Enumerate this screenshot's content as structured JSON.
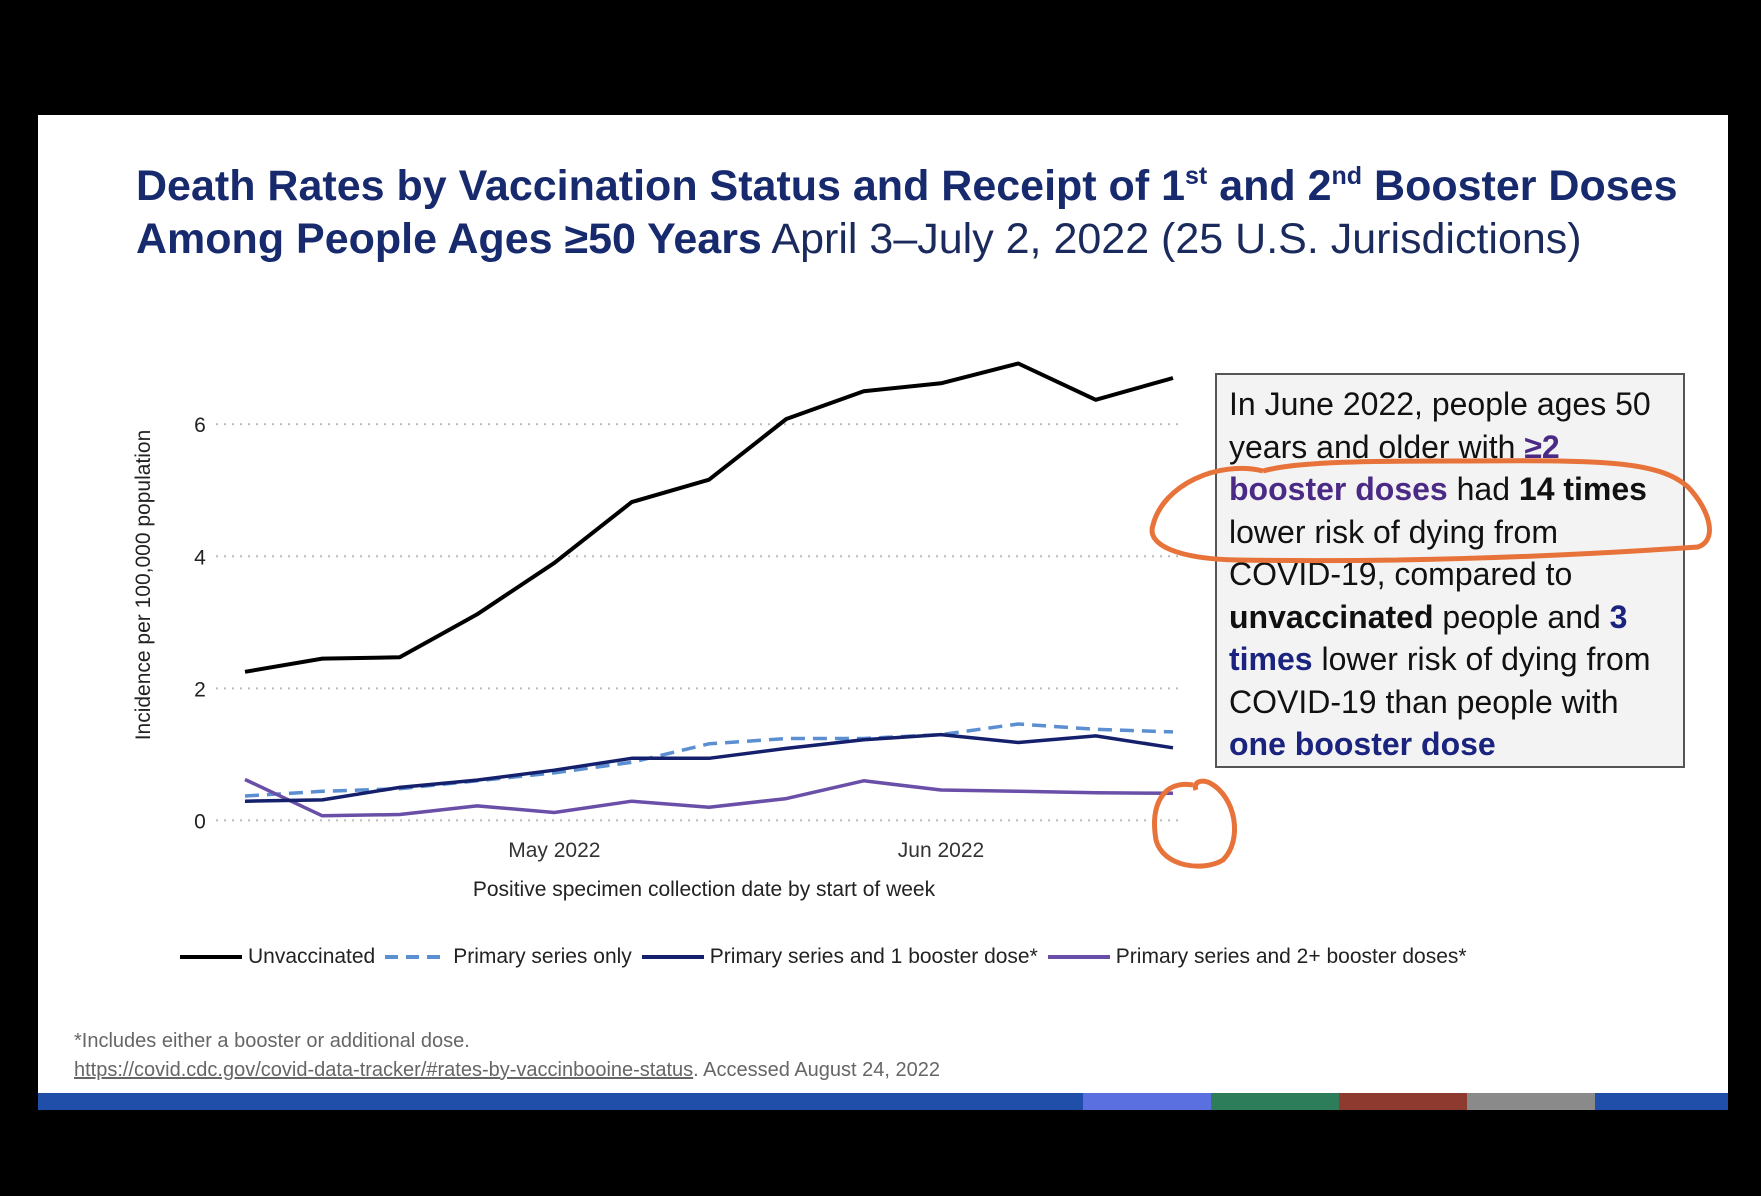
{
  "slide": {
    "title_bold_part1": "Death Rates by Vaccination Status and Receipt of 1",
    "title_sup1": "st",
    "title_bold_part2": " and 2",
    "title_sup2": "nd",
    "title_bold_part3": " Booster Doses Among People Ages ≥50 Years",
    "title_regular": " April 3–July 2, 2022 (25 U.S. Jurisdictions)"
  },
  "note_box": {
    "t1": "In June 2022, people ages 50 years and older with ",
    "t2_bold_purple": "≥2 booster doses",
    "t3": " had ",
    "t4_bold": "14 times",
    "t5": " lower risk of dying from COVID-19, compared to ",
    "t6_bold": "unvaccinated",
    "t7": " people and ",
    "t8_bold_navy": "3 times",
    "t9": " lower risk of dying from COVID-19 than people with ",
    "t10_bold_navy": "one booster dose"
  },
  "footnote": {
    "line1": "*Includes either a booster or additional dose.",
    "url": "https://covid.cdc.gov/covid-data-tracker/#rates-by-vaccinbooine-status",
    "accessed": ". Accessed August 24, 2022"
  },
  "colors": {
    "title": "#172a6e",
    "unvaccinated": "#000000",
    "primary_only": "#5b8fd1",
    "one_booster": "#14206b",
    "two_booster": "#6a4fa8",
    "annotation": "#e8733a",
    "stripe": [
      "#1f4fa8",
      "#5a6fe0",
      "#2e7d5a",
      "#8f3a2e",
      "#8a8a8a",
      "#1f4fa8"
    ]
  },
  "chart_data": {
    "type": "line",
    "title": "",
    "xlabel": "Positive specimen collection date by start of week",
    "ylabel": "Incidence per 100,000 population",
    "x": [
      "2022-04-03",
      "2022-04-10",
      "2022-04-17",
      "2022-04-24",
      "2022-05-01",
      "2022-05-08",
      "2022-05-15",
      "2022-05-22",
      "2022-05-29",
      "2022-06-05",
      "2022-06-12",
      "2022-06-19",
      "2022-06-26"
    ],
    "x_tick_labels": [
      {
        "label": "May 2022",
        "date": "2022-05-01"
      },
      {
        "label": "Jun 2022",
        "date": "2022-06-05"
      }
    ],
    "y_ticks": [
      0,
      2,
      4,
      6
    ],
    "ylim": [
      -0.1,
      7.2
    ],
    "grid": "horizontal dotted",
    "legend_position": "bottom",
    "series": [
      {
        "name": "Unvaccinated",
        "style": "solid",
        "values": [
          2.25,
          2.45,
          2.47,
          3.12,
          3.9,
          4.82,
          5.16,
          6.08,
          6.5,
          6.62,
          6.92,
          6.37,
          6.7
        ]
      },
      {
        "name": "Primary series only",
        "style": "dashed",
        "values": [
          0.37,
          0.44,
          0.48,
          0.6,
          0.72,
          0.88,
          1.16,
          1.24,
          1.24,
          1.3,
          1.46,
          1.38,
          1.34
        ]
      },
      {
        "name": "Primary series and 1 booster dose*",
        "style": "solid",
        "values": [
          0.29,
          0.31,
          0.5,
          0.61,
          0.76,
          0.94,
          0.94,
          1.09,
          1.22,
          1.3,
          1.18,
          1.28,
          1.1
        ]
      },
      {
        "name": "Primary series and 2+ booster doses*",
        "style": "solid",
        "values": [
          0.62,
          0.07,
          0.09,
          0.22,
          0.12,
          0.29,
          0.2,
          0.33,
          0.6,
          0.46,
          0.44,
          0.42,
          0.41
        ]
      }
    ]
  }
}
